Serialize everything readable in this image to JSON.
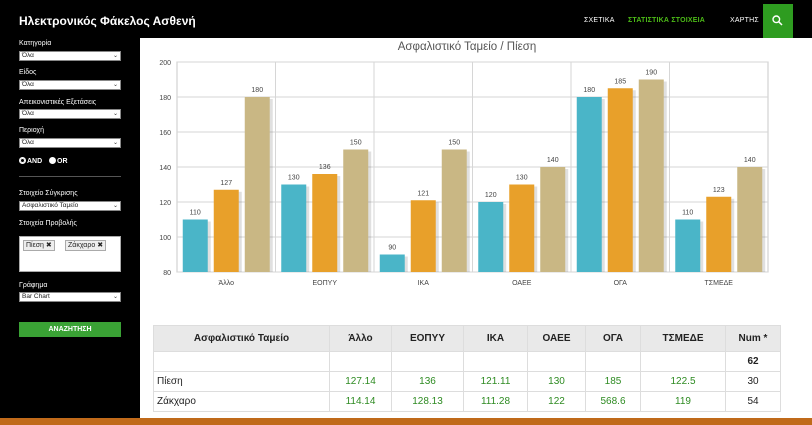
{
  "header": {
    "brand": "Ηλεκτρονικός Φάκελος Ασθενή",
    "nav": [
      "ΣΧΕΤΙΚΑ",
      "ΣΤΑΤΙΣΤΙΚΑ ΣΤΟΙΧΕΙΑ",
      "ΧΑΡΤΗΣ"
    ],
    "accent_color": "#4cbb17"
  },
  "sidebar": {
    "category_label": "Κατηγορία",
    "category_value": "Όλα",
    "type_label": "Είδος",
    "type_value": "Όλα",
    "exams_label": "Απεικονιστικές Εξετάσεις",
    "exams_value": "Όλα",
    "region_label": "Περιοχή",
    "region_value": "Όλα",
    "and_label": "AND",
    "or_label": "OR",
    "compare_label": "Στοιχείο Σύγκρισης",
    "compare_value": "Ασφαλιστικό Ταμείο",
    "display_label": "Στοιχεία Προβολής",
    "tags": [
      "Πίεση",
      "Ζάκχαρο"
    ],
    "graph_label": "Γράφημα",
    "graph_value": "Bar Chart",
    "search_button": "ΑΝΑΖΗΤΗΣΗ"
  },
  "chart_data": {
    "type": "bar",
    "title": "Ασφαλιστικό Ταμείο / Πίεση",
    "categories": [
      "Άλλο",
      "ΕΟΠΥΥ",
      "ΙΚΑ",
      "ΟΑΕΕ",
      "ΟΓΑ",
      "ΤΣΜΕΔΕ"
    ],
    "series": [
      {
        "color": "#4ab5c8",
        "values": [
          110,
          130,
          90,
          120,
          180,
          110
        ]
      },
      {
        "color": "#e8a02a",
        "values": [
          127,
          136,
          121,
          130,
          185,
          123
        ]
      },
      {
        "color": "#c9b784",
        "values": [
          180,
          150,
          150,
          140,
          190,
          140
        ]
      }
    ],
    "ylim": [
      80,
      200
    ],
    "yticks": [
      80,
      100,
      120,
      140,
      160,
      180,
      200
    ],
    "grid": true
  },
  "table": {
    "headers": [
      "Ασφαλιστικό Ταμείο",
      "Άλλο",
      "ΕΟΠΥΥ",
      "ΙΚΑ",
      "ΟΑΕΕ",
      "ΟΓΑ",
      "ΤΣΜΕΔΕ",
      "Num *"
    ],
    "total_row": {
      "num": "62"
    },
    "rows": [
      {
        "label": "Πίεση",
        "values": [
          "127.14",
          "136",
          "121.11",
          "130",
          "185",
          "122.5"
        ],
        "num": "30"
      },
      {
        "label": "Ζάκχαρο",
        "values": [
          "114.14",
          "128.13",
          "111.28",
          "122",
          "568.6",
          "119"
        ],
        "num": "54"
      }
    ]
  }
}
